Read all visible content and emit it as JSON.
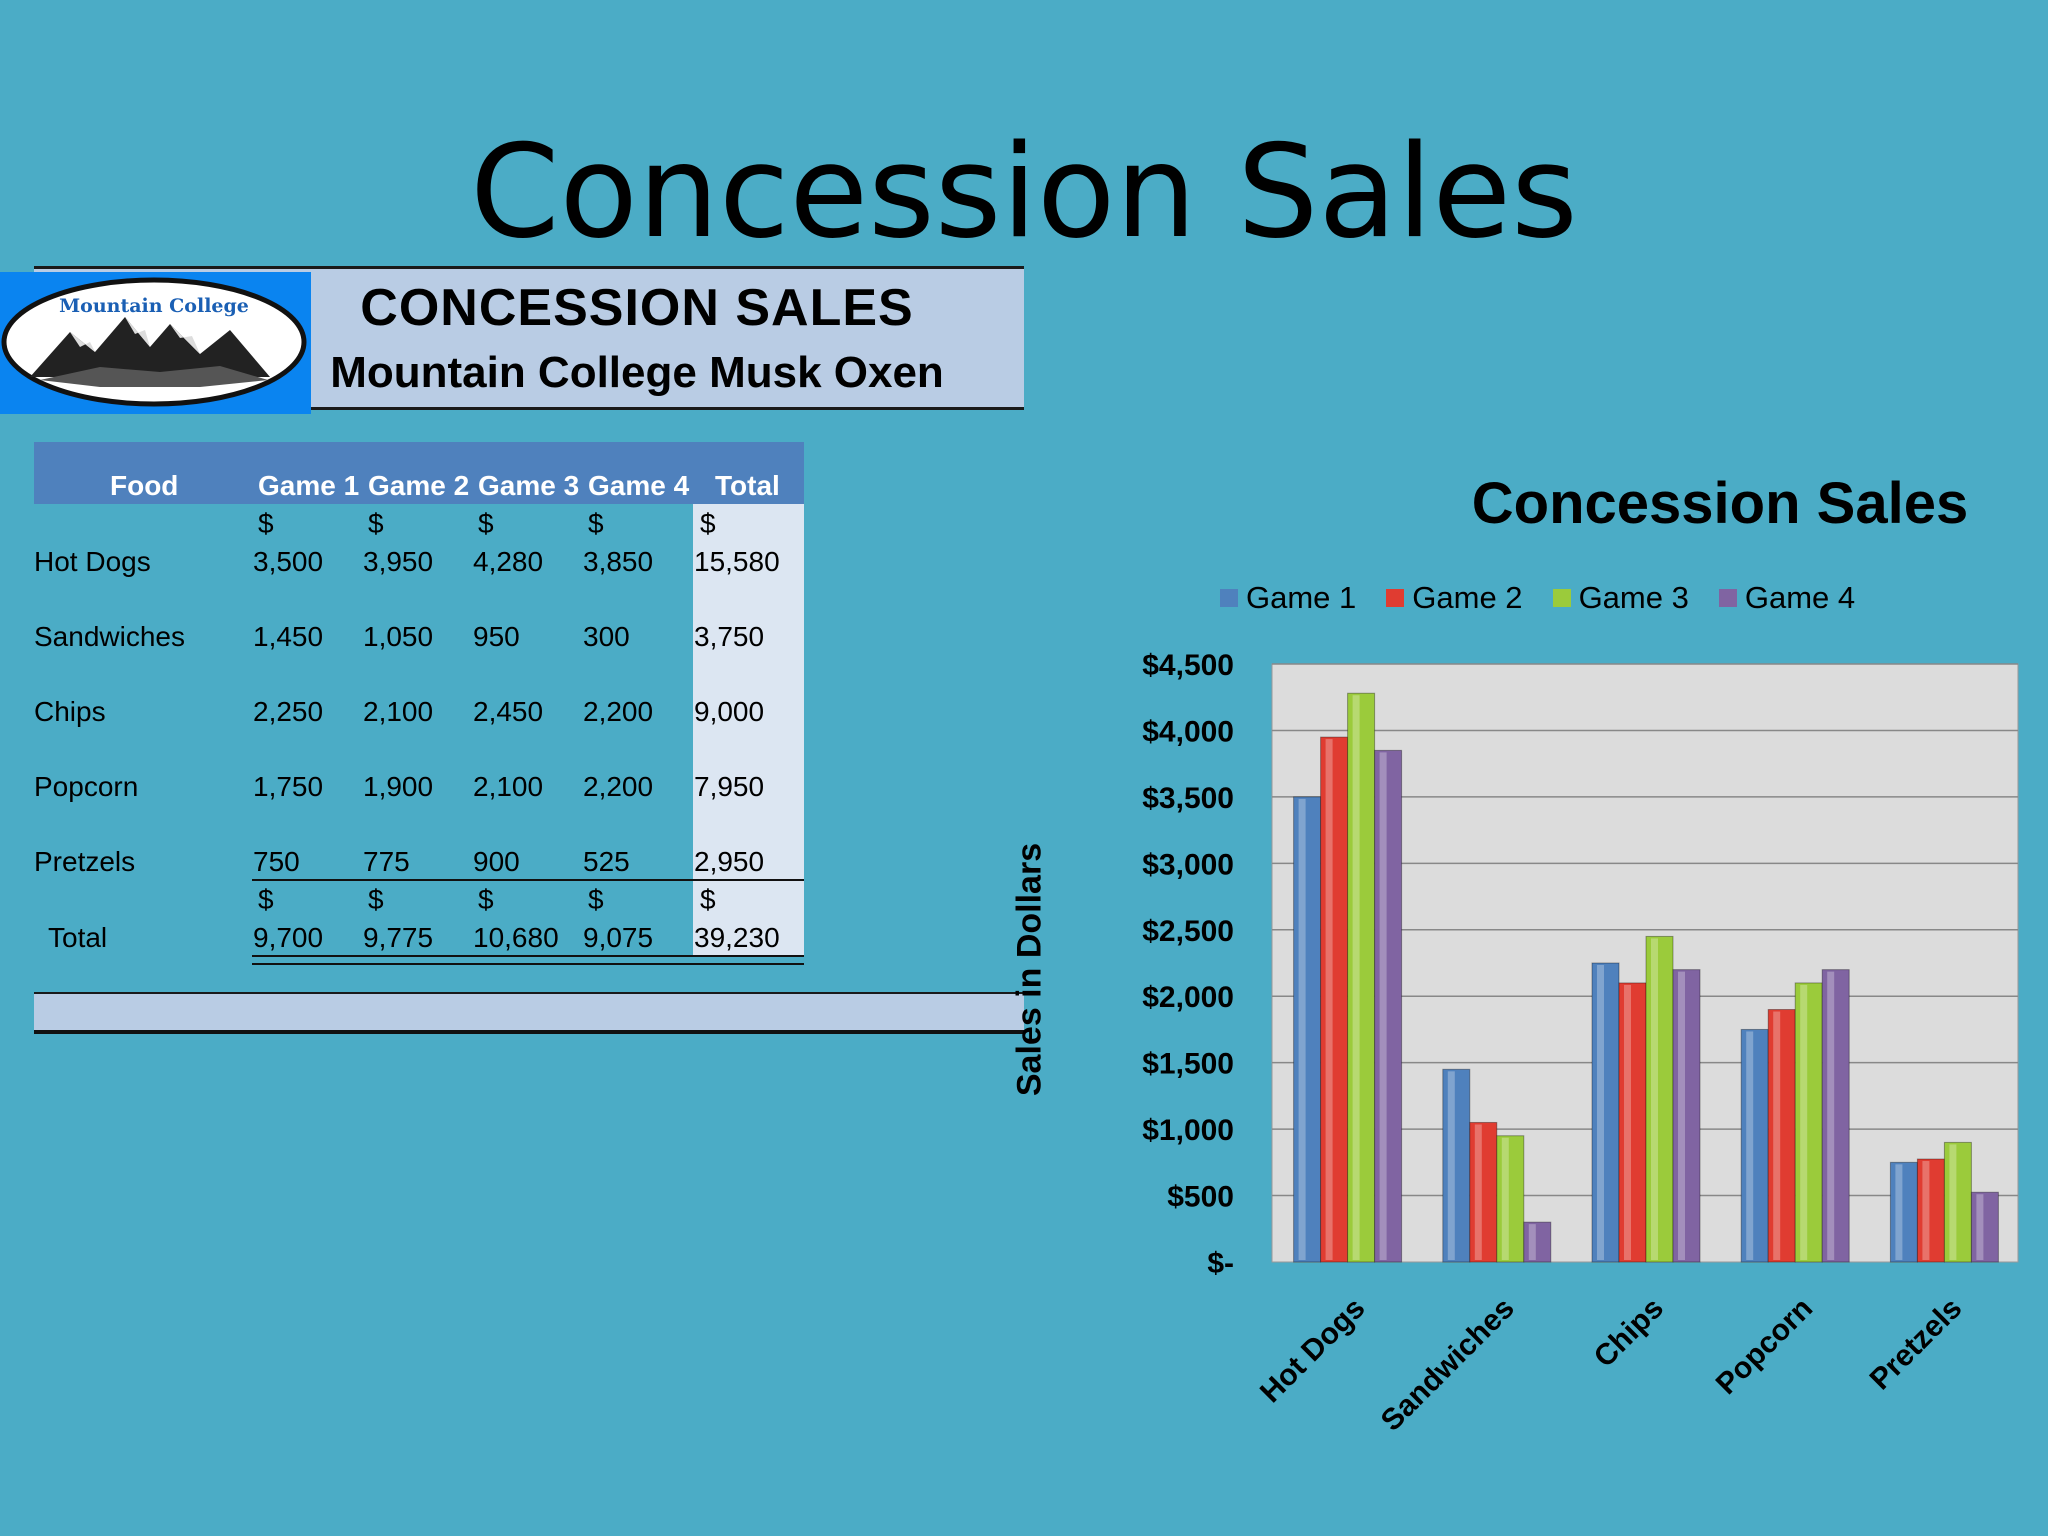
{
  "slide_title": "Concession Sales",
  "header": {
    "logo_text": "Mountain College",
    "title": "CONCESSION  SALES",
    "subtitle": "Mountain College Musk Oxen"
  },
  "table": {
    "headers": [
      "Food",
      "Game 1",
      "Game 2",
      "Game 3",
      "Game 4",
      "Total"
    ],
    "currency_symbol": "$",
    "rows": [
      {
        "food": "Hot Dogs",
        "values": [
          "3,500",
          "3,950",
          "4,280",
          "3,850"
        ],
        "total": "15,580"
      },
      {
        "food": "Sandwiches",
        "values": [
          "1,450",
          "1,050",
          "950",
          "300"
        ],
        "total": "3,750"
      },
      {
        "food": "Chips",
        "values": [
          "2,250",
          "2,100",
          "2,450",
          "2,200"
        ],
        "total": "9,000"
      },
      {
        "food": "Popcorn",
        "values": [
          "1,750",
          "1,900",
          "2,100",
          "2,200"
        ],
        "total": "7,950"
      },
      {
        "food": "Pretzels",
        "values": [
          "750",
          "775",
          "900",
          "525"
        ],
        "total": "2,950"
      }
    ],
    "total_row": {
      "label": "Total",
      "values": [
        "9,700",
        "9,775",
        "10,680",
        "9,075"
      ],
      "total": "39,230"
    }
  },
  "chart_data": {
    "type": "bar",
    "title": "Concession Sales",
    "ylabel": "Sales in Dollars",
    "xlabel": "",
    "categories": [
      "Hot Dogs",
      "Sandwiches",
      "Chips",
      "Popcorn",
      "Pretzels"
    ],
    "series": [
      {
        "name": "Game 1",
        "color": "#4F81BD",
        "values": [
          3500,
          1450,
          2250,
          1750,
          750
        ]
      },
      {
        "name": "Game 2",
        "color": "#E03C31",
        "values": [
          3950,
          1050,
          2100,
          1900,
          775
        ]
      },
      {
        "name": "Game 3",
        "color": "#9BCB3B",
        "values": [
          4280,
          950,
          2450,
          2100,
          900
        ]
      },
      {
        "name": "Game 4",
        "color": "#8064A2",
        "values": [
          3850,
          300,
          2200,
          2200,
          525
        ]
      }
    ],
    "ylim": [
      0,
      4500
    ],
    "yticks": [
      0,
      500,
      1000,
      1500,
      2000,
      2500,
      3000,
      3500,
      4000,
      4500
    ],
    "ytick_labels": [
      "$-",
      "$500",
      "$1,000",
      "$1,500",
      "$2,000",
      "$2,500",
      "$3,000",
      "$3,500",
      "$4,000",
      "$4,500"
    ],
    "grid": true,
    "legend_position": "top"
  }
}
